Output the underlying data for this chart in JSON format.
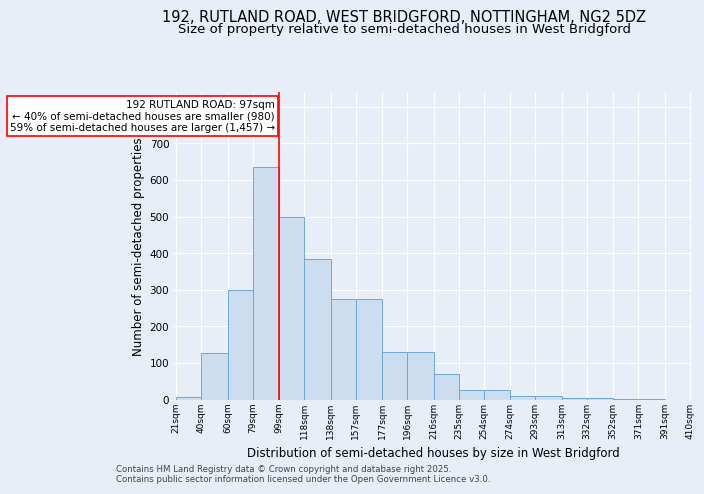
{
  "title1": "192, RUTLAND ROAD, WEST BRIDGFORD, NOTTINGHAM, NG2 5DZ",
  "title2": "Size of property relative to semi-detached houses in West Bridgford",
  "xlabel": "Distribution of semi-detached houses by size in West Bridgford",
  "ylabel": "Number of semi-detached properties",
  "footnote": "Contains HM Land Registry data © Crown copyright and database right 2025.\nContains public sector information licensed under the Open Government Licence v3.0.",
  "bin_labels": [
    "21sqm",
    "40sqm",
    "60sqm",
    "79sqm",
    "99sqm",
    "118sqm",
    "138sqm",
    "157sqm",
    "177sqm",
    "196sqm",
    "216sqm",
    "235sqm",
    "254sqm",
    "274sqm",
    "293sqm",
    "313sqm",
    "332sqm",
    "352sqm",
    "371sqm",
    "391sqm",
    "410sqm"
  ],
  "bin_edges": [
    21,
    40,
    60,
    79,
    99,
    118,
    138,
    157,
    177,
    196,
    216,
    235,
    254,
    274,
    293,
    313,
    332,
    352,
    371,
    391,
    410
  ],
  "values": [
    8,
    128,
    300,
    635,
    500,
    385,
    275,
    275,
    130,
    130,
    70,
    25,
    25,
    10,
    10,
    5,
    5,
    2,
    2,
    0
  ],
  "bar_color": "#ccddf0",
  "bar_edge_color": "#6aaad4",
  "vline_x": 99,
  "vline_color": "red",
  "annotation_text": "192 RUTLAND ROAD: 97sqm\n← 40% of semi-detached houses are smaller (980)\n59% of semi-detached houses are larger (1,457) →",
  "annotation_box_color": "white",
  "annotation_box_edge": "red",
  "ylim": [
    0,
    840
  ],
  "yticks": [
    0,
    100,
    200,
    300,
    400,
    500,
    600,
    700,
    800
  ],
  "bg_color": "#e8eef8",
  "plot_bg": "#e8eef8",
  "grid_color": "white",
  "title1_fontsize": 10.5,
  "title2_fontsize": 9.5,
  "xlabel_fontsize": 8.5,
  "ylabel_fontsize": 8.5,
  "annot_fontsize": 7.5
}
